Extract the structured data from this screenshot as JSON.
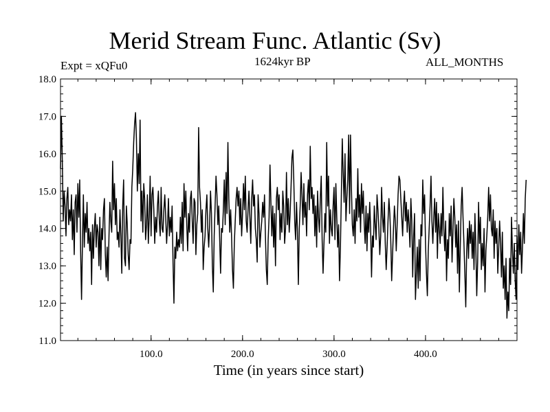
{
  "chart_data": {
    "type": "line",
    "title": "Merid Stream Func. Atlantic (Sv)",
    "subtitle_left": "Expt = xQFu0",
    "subtitle_center": "1624kyr BP",
    "subtitle_right": "ALL_MONTHS",
    "xlabel": "Time (in years since start)",
    "ylabel": "",
    "xlim": [
      1,
      500
    ],
    "ylim": [
      11.0,
      18.0
    ],
    "xticks": [
      100,
      200,
      300,
      400
    ],
    "xtick_labels": [
      "100.0",
      "200.0",
      "300.0",
      "400.0"
    ],
    "yticks": [
      11,
      12,
      13,
      14,
      15,
      16,
      17,
      18
    ],
    "ytick_labels": [
      "11.0",
      "12.0",
      "13.0",
      "14.0",
      "15.0",
      "16.0",
      "17.0",
      "18.0"
    ],
    "grid": false,
    "series": [
      {
        "name": "Merid Stream Func. Atlantic",
        "color": "#000000",
        "x_start": 1,
        "x_step": 1,
        "values": [
          15.6,
          17.0,
          15.8,
          14.2,
          15.0,
          14.6,
          13.8,
          14.8,
          15.1,
          14.1,
          14.5,
          14.2,
          14.9,
          13.7,
          14.5,
          13.3,
          14.7,
          14.9,
          13.9,
          15.2,
          14.3,
          15.3,
          13.4,
          12.1,
          13.6,
          14.9,
          13.5,
          14.4,
          13.9,
          14.7,
          13.6,
          14.0,
          13.4,
          13.9,
          12.5,
          14.1,
          13.2,
          14.0,
          14.4,
          13.5,
          14.1,
          13.9,
          13.0,
          14.3,
          12.9,
          14.0,
          13.7,
          14.5,
          14.8,
          13.3,
          12.7,
          13.5,
          12.6,
          13.8,
          14.7,
          14.2,
          13.9,
          15.8,
          14.5,
          15.2,
          14.1,
          14.8,
          13.7,
          13.9,
          13.5,
          14.5,
          13.8,
          12.8,
          14.6,
          15.3,
          13.2,
          13.0,
          14.6,
          14.1,
          13.3,
          12.9,
          13.7,
          13.6,
          15.1,
          15.6,
          16.3,
          16.8,
          17.1,
          16.4,
          15.0,
          16.0,
          15.2,
          16.9,
          14.2,
          15.0,
          13.9,
          15.2,
          14.8,
          13.7,
          14.1,
          14.9,
          13.6,
          14.3,
          15.4,
          13.8,
          14.9,
          15.1,
          14.5,
          13.6,
          14.3,
          13.9,
          14.6,
          15.0,
          14.2,
          13.8,
          15.1,
          14.0,
          13.9,
          14.5,
          14.9,
          14.3,
          13.6,
          14.1,
          14.8,
          13.8,
          14.3,
          13.9,
          14.6,
          13.1,
          12.0,
          13.5,
          13.2,
          13.9,
          13.4,
          13.7,
          13.5,
          14.3,
          13.6,
          14.7,
          13.4,
          15.2,
          14.3,
          15.0,
          14.1,
          13.4,
          14.4,
          13.9,
          14.8,
          15.0,
          14.2,
          13.6,
          14.8,
          14.7,
          13.3,
          14.1,
          14.4,
          16.7,
          15.1,
          14.7,
          13.9,
          14.5,
          12.9,
          13.5,
          13.8,
          14.5,
          14.9,
          14.0,
          13.5,
          14.1,
          15.0,
          14.4,
          13.0,
          12.3,
          13.8,
          14.6,
          15.4,
          14.9,
          14.1,
          14.6,
          13.7,
          12.8,
          14.0,
          13.9,
          14.5,
          15.3,
          14.1,
          15.5,
          14.4,
          16.3,
          14.8,
          13.9,
          14.5,
          13.8,
          12.9,
          12.4,
          13.6,
          14.2,
          14.8,
          15.1,
          14.6,
          15.0,
          14.1,
          14.8,
          13.8,
          14.4,
          15.2,
          14.5,
          15.4,
          14.2,
          13.9,
          14.5,
          15.0,
          14.3,
          13.6,
          14.8,
          15.3,
          14.6,
          14.9,
          14.0,
          13.7,
          13.1,
          14.9,
          14.4,
          13.5,
          13.9,
          14.2,
          14.7,
          14.3,
          14.9,
          13.8,
          12.9,
          12.5,
          13.7,
          14.3,
          15.7,
          14.7,
          13.8,
          14.6,
          13.5,
          14.4,
          13.0,
          14.8,
          15.1,
          14.5,
          14.9,
          13.7,
          14.4,
          13.9,
          15.0,
          14.6,
          13.6,
          14.0,
          15.5,
          14.1,
          14.8,
          13.9,
          14.4,
          15.1,
          15.9,
          16.1,
          15.3,
          14.2,
          13.7,
          14.7,
          13.9,
          12.5,
          14.0,
          14.6,
          15.5,
          14.9,
          14.1,
          15.2,
          14.3,
          14.7,
          13.8,
          14.9,
          15.3,
          14.5,
          16.2,
          14.8,
          15.1,
          14.4,
          14.9,
          13.8,
          14.6,
          13.5,
          15.0,
          14.3,
          13.9,
          14.8,
          15.4,
          13.7,
          12.8,
          13.6,
          14.4,
          13.9,
          16.3,
          14.6,
          15.4,
          13.6,
          14.5,
          14.0,
          13.8,
          14.6,
          15.1,
          13.7,
          15.2,
          14.3,
          13.5,
          14.1,
          12.6,
          13.5,
          14.9,
          16.4,
          15.5,
          14.7,
          16.0,
          14.2,
          14.8,
          15.3,
          16.5,
          14.4,
          16.5,
          15.1,
          14.1,
          13.8,
          14.5,
          13.6,
          14.8,
          14.2,
          15.6,
          14.3,
          14.9,
          13.9,
          15.2,
          14.4,
          15.0,
          14.1,
          13.6,
          14.6,
          13.4,
          14.4,
          13.9,
          14.7,
          14.0,
          12.7,
          13.8,
          13.5,
          14.6,
          14.1,
          13.7,
          14.9,
          14.5,
          14.0,
          13.3,
          13.8,
          15.1,
          14.3,
          13.9,
          14.7,
          13.6,
          12.9,
          13.5,
          14.2,
          14.8,
          14.4,
          13.7,
          12.6,
          13.3,
          14.0,
          14.6,
          14.2,
          13.4,
          14.1,
          14.9,
          15.4,
          15.3,
          14.8,
          14.3,
          13.8,
          14.6,
          15.0,
          14.2,
          14.7,
          13.9,
          14.5,
          14.1,
          13.5,
          14.8,
          14.2,
          12.7,
          13.8,
          14.4,
          12.1,
          12.8,
          13.5,
          12.4,
          13.7,
          12.6,
          14.1,
          13.8,
          15.3,
          14.4,
          14.9,
          13.6,
          12.8,
          12.2,
          13.4,
          14.0,
          14.6,
          15.4,
          14.2,
          13.6,
          14.3,
          14.8,
          13.9,
          14.7,
          13.2,
          14.4,
          14.0,
          13.6,
          14.4,
          13.8,
          15.1,
          14.0,
          13.4,
          14.2,
          12.6,
          13.7,
          13.2,
          14.4,
          13.8,
          14.6,
          13.1,
          13.9,
          14.8,
          14.3,
          13.5,
          14.1,
          12.8,
          14.2,
          12.3,
          13.5,
          14.6,
          15.1,
          14.3,
          13.6,
          12.8,
          11.9,
          13.4,
          14.0,
          13.2,
          14.2,
          13.6,
          14.1,
          13.2,
          13.9,
          12.9,
          14.4,
          13.5,
          12.2,
          13.1,
          14.7,
          13.6,
          14.3,
          12.9,
          13.6,
          13.0,
          14.0,
          12.3,
          13.4,
          13.8,
          14.3,
          15.1,
          14.2,
          14.9,
          14.0,
          13.8,
          14.5,
          13.2,
          14.2,
          13.6,
          14.0,
          12.8,
          13.5,
          14.2,
          13.6,
          12.7,
          13.9,
          12.4,
          13.0,
          12.1,
          13.2,
          11.6,
          12.3,
          11.8,
          13.2,
          12.5,
          14.3,
          13.4,
          12.8,
          13.6,
          12.6,
          12.1,
          13.8,
          12.9,
          14.1,
          13.3,
          13.9,
          12.8,
          13.5,
          14.4,
          13.6,
          14.8,
          15.3
        ]
      }
    ]
  }
}
